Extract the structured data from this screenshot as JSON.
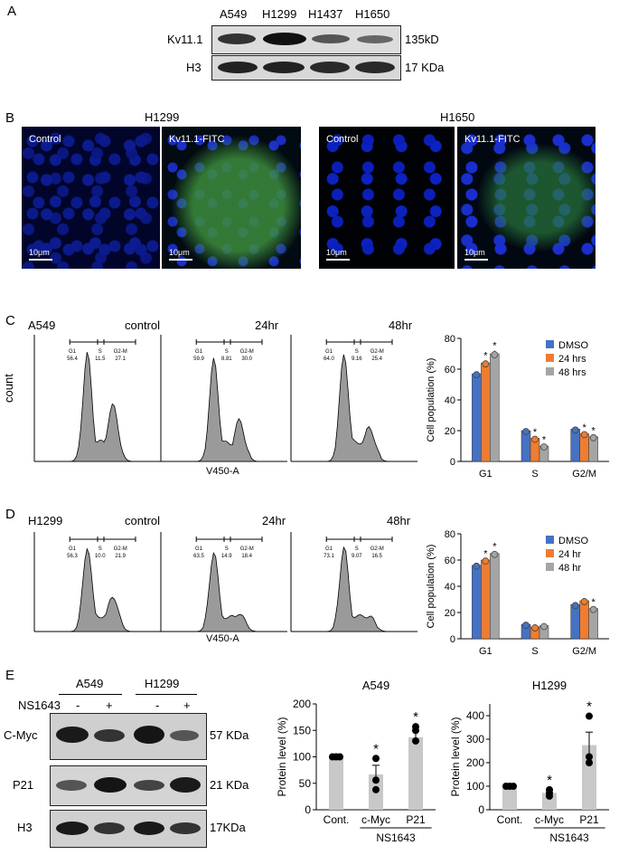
{
  "panelA": {
    "letter": "A",
    "lanes": [
      "A549",
      "H1299",
      "H1437",
      "H1650"
    ],
    "row_labels": [
      "Kv11.1",
      "H3"
    ],
    "size_labels": [
      "135kD",
      "17 KDa"
    ]
  },
  "panelB": {
    "letter": "B",
    "groups": [
      "H1299",
      "H1650"
    ],
    "image_labels": [
      "Control",
      "Kv11.1-FITC",
      "Control",
      "Kv11.1-FITC"
    ],
    "scale": "10μm"
  },
  "panelC": {
    "letter": "C",
    "cell_line": "A549",
    "hist_titles": [
      "control",
      "24hr",
      "48hr"
    ],
    "ylabel": "count",
    "xlabel": "V450-A",
    "gates": [
      {
        "g1": "56.4",
        "s": "11.5",
        "g2m": "27.1"
      },
      {
        "g1": "59.9",
        "s": "8.81",
        "g2m": "30.0"
      },
      {
        "g1": "64.0",
        "s": "9.16",
        "g2m": "25.4"
      }
    ]
  },
  "panelD": {
    "letter": "D",
    "cell_line": "H1299",
    "hist_titles": [
      "control",
      "24hr",
      "48hr"
    ],
    "xlabel": "V450-A",
    "gates": [
      {
        "g1": "56.3",
        "s": "10.0",
        "g2m": "21.9"
      },
      {
        "g1": "63.5",
        "s": "14.9",
        "g2m": "18.4"
      },
      {
        "g1": "73.1",
        "s": "9.07",
        "g2m": "16.5"
      }
    ]
  },
  "panelE": {
    "letter": "E",
    "lanes": [
      "A549",
      "H1299"
    ],
    "treatment": "NS1643",
    "signs": [
      "-",
      "+",
      "-",
      "+"
    ],
    "row_labels": [
      "C-Myc",
      "P21",
      "H3"
    ],
    "size_labels": [
      "57 KDa",
      "21 KDa",
      "17KDa"
    ]
  },
  "colors": {
    "dmso": "#4472c4",
    "t24": "#ed7d31",
    "t48": "#a5a5a5",
    "protein_bar": "#c8c8c8"
  },
  "chart_data": [
    {
      "id": "cycle-a549",
      "type": "bar",
      "categories": [
        "G1",
        "S",
        "G2/M"
      ],
      "series": [
        {
          "name": "DMSO",
          "values": [
            57,
            20,
            21
          ]
        },
        {
          "name": "24 hrs",
          "values": [
            64,
            15,
            18
          ]
        },
        {
          "name": "48 hrs",
          "values": [
            70,
            10,
            16
          ]
        }
      ],
      "errors": [
        [
          1.5,
          1.2,
          1.2
        ],
        [
          1.5,
          0.8,
          0.8
        ],
        [
          2,
          1,
          0.8
        ]
      ],
      "stars": [
        [
          false,
          false,
          false
        ],
        [
          true,
          true,
          true
        ],
        [
          true,
          true,
          true
        ]
      ],
      "ylabel": "Cell population (%)",
      "ylim": [
        0,
        80
      ],
      "yticks": [
        0,
        20,
        40,
        60,
        80
      ],
      "legend": "top-right"
    },
    {
      "id": "cycle-h1299",
      "type": "bar",
      "categories": [
        "G1",
        "S",
        "G2/M"
      ],
      "series": [
        {
          "name": "DMSO",
          "values": [
            56,
            11,
            26
          ]
        },
        {
          "name": "24 hr",
          "values": [
            60,
            9,
            29
          ]
        },
        {
          "name": "48 hr",
          "values": [
            65,
            10,
            23
          ]
        }
      ],
      "errors": [
        [
          1.5,
          1,
          1.2
        ],
        [
          1.2,
          1,
          1.2
        ],
        [
          1.5,
          1,
          1.2
        ]
      ],
      "stars": [
        [
          false,
          false,
          false
        ],
        [
          true,
          false,
          false
        ],
        [
          true,
          false,
          true
        ]
      ],
      "ylabel": "Cell population (%)",
      "ylim": [
        0,
        80
      ],
      "yticks": [
        0,
        20,
        40,
        60,
        80
      ],
      "legend": "top-right"
    },
    {
      "id": "protein-a549",
      "type": "bar",
      "title": "A549",
      "categories": [
        "Cont.",
        "c-Myc",
        "P21"
      ],
      "values": [
        100,
        67,
        137
      ],
      "errors": [
        0,
        17,
        12
      ],
      "points": [
        [
          100,
          100,
          100
        ],
        [
          97,
          56,
          38
        ],
        [
          157,
          150,
          130
        ]
      ],
      "stars": [
        false,
        true,
        true
      ],
      "ylabel": "Protein level (%)",
      "ylim": [
        0,
        200
      ],
      "yticks": [
        0,
        50,
        100,
        150,
        200
      ],
      "group_label": "NS1643"
    },
    {
      "id": "protein-h1299",
      "type": "bar",
      "title": "H1299",
      "categories": [
        "Cont.",
        "c-Myc",
        "P21"
      ],
      "values": [
        100,
        72,
        275
      ],
      "errors": [
        0,
        10,
        55
      ],
      "points": [
        [
          100,
          100,
          100
        ],
        [
          85,
          70,
          58
        ],
        [
          398,
          225,
          200
        ]
      ],
      "stars": [
        false,
        true,
        true
      ],
      "ylabel": "Protein level (%)",
      "ylim": [
        0,
        450
      ],
      "yticks": [
        0,
        100,
        200,
        300,
        400
      ],
      "group_label": "NS1643"
    }
  ]
}
